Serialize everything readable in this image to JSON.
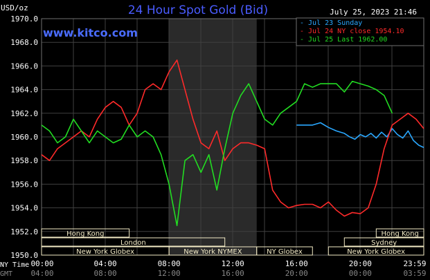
{
  "chart_data": {
    "type": "line",
    "title": "24 Hour Spot Gold (Bid)",
    "units_label": "USD/oz",
    "date_label": "July 25, 2023 21:46",
    "watermark": "www.kitco.com",
    "ylim": [
      1950.0,
      1970.0
    ],
    "y_ticks": [
      "1950.0",
      "1952.0",
      "1954.0",
      "1956.0",
      "1958.0",
      "1960.0",
      "1962.0",
      "1964.0",
      "1966.0",
      "1968.0",
      "1970.0"
    ],
    "x_tick_labels": [
      "00:00",
      "04:00",
      "08:00",
      "12:00",
      "16:00",
      "20:00",
      "23:59"
    ],
    "gmt_tick_labels": [
      "04:00",
      "08:00",
      "12:00",
      "16:00",
      "20:00",
      "00:00",
      "03:59"
    ],
    "time_row_labels": [
      "NY Time",
      "GMT"
    ],
    "grid": true,
    "legend": "top-right",
    "colors": {
      "background": "#000000",
      "grid": "#404040",
      "title": "#4a5cff",
      "watermark": "#4a6cff",
      "text": "#ffffff",
      "session_shade": "#2a2a2a",
      "session_bar": "#f3ebc6"
    },
    "series": [
      {
        "name": "Jul 23 Sunday",
        "color": "#2aa8ff",
        "x": [
          "16:00",
          "17:00",
          "17:30",
          "18:00",
          "18:30",
          "19:00",
          "19:20",
          "19:40",
          "20:00",
          "20:20",
          "20:40",
          "21:00",
          "21:20",
          "21:40",
          "22:00",
          "22:20",
          "22:40",
          "23:00",
          "23:20",
          "23:40",
          "23:59"
        ],
        "y": [
          1961.0,
          1961.0,
          1961.2,
          1960.8,
          1960.5,
          1960.3,
          1960.0,
          1959.8,
          1960.2,
          1960.0,
          1960.3,
          1959.9,
          1960.4,
          1960.0,
          1960.7,
          1960.2,
          1959.9,
          1960.5,
          1959.7,
          1959.3,
          1959.1
        ]
      },
      {
        "name": "Jul 24 NY close 1954.10",
        "color": "#ff2a2a",
        "x": [
          "00:00",
          "00:30",
          "01:00",
          "01:30",
          "02:00",
          "02:30",
          "03:00",
          "03:30",
          "04:00",
          "04:30",
          "05:00",
          "05:30",
          "06:00",
          "06:30",
          "07:00",
          "07:30",
          "08:00",
          "08:30",
          "09:00",
          "09:30",
          "10:00",
          "10:30",
          "11:00",
          "11:30",
          "12:00",
          "12:30",
          "13:00",
          "13:30",
          "14:00",
          "14:30",
          "15:00",
          "15:30",
          "16:00",
          "16:30",
          "17:00",
          "17:30",
          "18:00",
          "18:30",
          "19:00",
          "19:30",
          "20:00",
          "20:30",
          "21:00",
          "21:30",
          "22:00",
          "22:30",
          "23:00",
          "23:30",
          "23:59"
        ],
        "y": [
          1958.5,
          1958.0,
          1959.0,
          1959.5,
          1960.0,
          1960.5,
          1960.0,
          1961.5,
          1962.5,
          1963.0,
          1962.5,
          1961.0,
          1962.0,
          1964.0,
          1964.5,
          1964.0,
          1965.5,
          1966.5,
          1964.0,
          1961.5,
          1959.5,
          1959.0,
          1960.5,
          1958.0,
          1959.0,
          1959.5,
          1959.5,
          1959.3,
          1959.0,
          1955.5,
          1954.5,
          1954.0,
          1954.2,
          1954.3,
          1954.3,
          1954.0,
          1954.5,
          1953.8,
          1953.3,
          1953.6,
          1953.5,
          1954.0,
          1956.0,
          1959.0,
          1961.0,
          1961.5,
          1962.0,
          1961.5,
          1960.7
        ]
      },
      {
        "name": "Jul 25 Last 1962.00",
        "color": "#22dd22",
        "x": [
          "00:00",
          "00:30",
          "01:00",
          "01:30",
          "02:00",
          "02:30",
          "03:00",
          "03:30",
          "04:00",
          "04:30",
          "05:00",
          "05:30",
          "06:00",
          "06:30",
          "07:00",
          "07:30",
          "08:00",
          "08:30",
          "09:00",
          "09:30",
          "10:00",
          "10:30",
          "11:00",
          "11:30",
          "12:00",
          "12:30",
          "13:00",
          "13:30",
          "14:00",
          "14:30",
          "15:00",
          "15:30",
          "16:00",
          "16:30",
          "17:00",
          "17:30",
          "18:00",
          "18:30",
          "19:00",
          "19:30",
          "20:00",
          "20:30",
          "21:00",
          "21:30",
          "22:00"
        ],
        "y": [
          1961.0,
          1960.5,
          1959.5,
          1960.0,
          1961.5,
          1960.5,
          1959.5,
          1960.5,
          1960.0,
          1959.5,
          1959.8,
          1961.0,
          1960.0,
          1960.5,
          1960.0,
          1958.5,
          1956.0,
          1952.5,
          1958.0,
          1958.5,
          1957.0,
          1958.5,
          1955.5,
          1959.0,
          1962.0,
          1963.5,
          1964.5,
          1963.0,
          1961.5,
          1961.0,
          1962.0,
          1962.5,
          1963.0,
          1964.5,
          1964.2,
          1964.5,
          1964.5,
          1964.5,
          1963.8,
          1964.7,
          1964.5,
          1964.3,
          1964.0,
          1963.5,
          1962.0
        ]
      }
    ],
    "session_bars": [
      {
        "label": "Hong Kong",
        "start": "00:00",
        "end": "05:30",
        "row": 0
      },
      {
        "label": "Hong Kong",
        "start": "21:00",
        "end": "23:59",
        "row": 0
      },
      {
        "label": "London",
        "start": "00:00",
        "end": "11:30",
        "row": 1
      },
      {
        "label": "Sydney",
        "start": "19:00",
        "end": "23:59",
        "row": 1
      },
      {
        "label": "New York Globex",
        "start": "00:00",
        "end": "08:00",
        "row": 2
      },
      {
        "label": "New York NYMEX",
        "start": "08:00",
        "end": "13:30",
        "row": 2
      },
      {
        "label": "NY Globex",
        "start": "13:30",
        "end": "17:00",
        "row": 2
      },
      {
        "label": "New York Globex",
        "start": "18:00",
        "end": "23:59",
        "row": 2
      }
    ],
    "session_shade": {
      "start": "08:00",
      "end": "13:30"
    }
  }
}
